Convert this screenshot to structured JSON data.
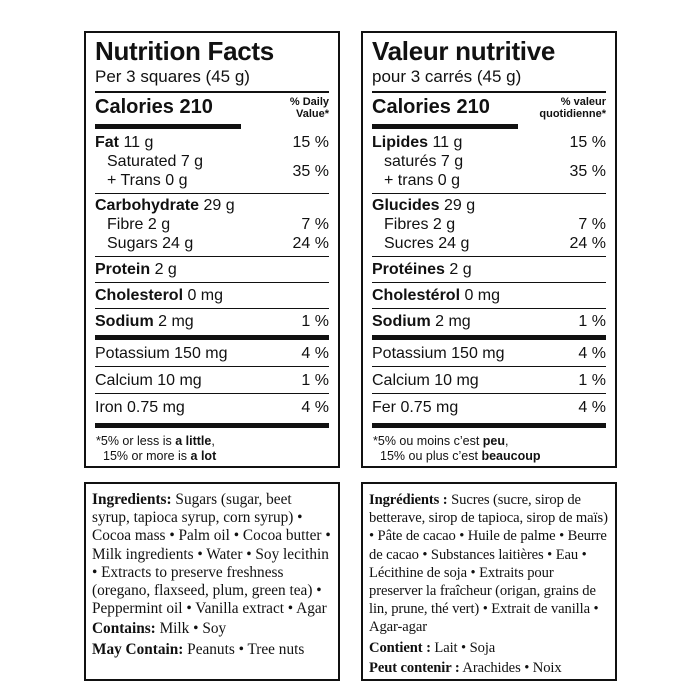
{
  "en": {
    "title": "Nutrition Facts",
    "serving": "Per 3 squares (45 g)",
    "calories": "Calories 210",
    "dv_line1": "% Daily",
    "dv_line2": "Value*",
    "fat_label": "Fat",
    "fat_amount": " 11 g",
    "fat_pct": "15 %",
    "saturated": "Saturated 7 g",
    "trans": "+ Trans 0 g",
    "sat_trans_pct": "35 %",
    "carb_label": "Carbohydrate",
    "carb_amount": " 29 g",
    "fibre": "Fibre 2 g",
    "fibre_pct": "7 %",
    "sugars": "Sugars 24 g",
    "sugars_pct": "24 %",
    "protein_label": "Protein",
    "protein_amount": " 2 g",
    "cholesterol_label": "Cholesterol",
    "cholesterol_amount": " 0 mg",
    "sodium_label": "Sodium",
    "sodium_amount": " 2 mg",
    "sodium_pct": "1 %",
    "potassium": "Potassium 150 mg",
    "potassium_pct": "4 %",
    "calcium": "Calcium 10 mg",
    "calcium_pct": "1 %",
    "iron": "Iron 0.75 mg",
    "iron_pct": "4 %",
    "foot_a": "*5% or less is ",
    "foot_b": "a little",
    "foot_c": ",",
    "foot_d": "15% or more is ",
    "foot_e": "a lot"
  },
  "fr": {
    "title": "Valeur nutritive",
    "serving": "pour 3 carrés (45 g)",
    "calories": "Calories 210",
    "dv_line1": "% valeur",
    "dv_line2": "quotidienne*",
    "fat_label": "Lipides",
    "fat_amount": " 11 g",
    "fat_pct": "15 %",
    "saturated": "saturés 7 g",
    "trans": "+ trans 0 g",
    "sat_trans_pct": "35 %",
    "carb_label": "Glucides",
    "carb_amount": " 29 g",
    "fibre": "Fibres 2 g",
    "fibre_pct": "7 %",
    "sugars": "Sucres 24 g",
    "sugars_pct": "24 %",
    "protein_label": "Protéines",
    "protein_amount": " 2 g",
    "cholesterol_label": "Cholestérol",
    "cholesterol_amount": " 0 mg",
    "sodium_label": "Sodium",
    "sodium_amount": " 2 mg",
    "sodium_pct": "1 %",
    "potassium": "Potassium 150 mg",
    "potassium_pct": "4 %",
    "calcium": "Calcium 10 mg",
    "calcium_pct": "1 %",
    "iron": "Fer 0.75 mg",
    "iron_pct": "4 %",
    "foot_a": "*5% ou moins c’est ",
    "foot_b": "peu",
    "foot_c": ",",
    "foot_d": "15% ou plus c’est ",
    "foot_e": "beaucoup"
  },
  "ingredients_en": {
    "label": "Ingredients:",
    "text": " Sugars (sugar, beet syrup, tapioca syrup, corn syrup) • Cocoa mass • Palm oil • Cocoa butter • Milk ingredients • Water • Soy lecithin • Extracts to preserve freshness (oregano, flaxseed, plum, green tea) • Peppermint oil • Vanilla extract • Agar",
    "contains_label": "Contains:",
    "contains_text": " Milk • Soy",
    "may_label": "May Contain:",
    "may_text": " Peanuts • Tree nuts"
  },
  "ingredients_fr": {
    "label": "Ingrédients :",
    "text": " Sucres (sucre, sirop de betterave, sirop de tapioca, sirop de maïs) • Pâte de cacao • Huile de palme • Beurre de cacao • Substances laitières • Eau • Lécithine de soja • Extraits pour preserver la fraîcheur (origan, grains de lin, prune, thé vert) • Extrait de vanilla • Agar-agar",
    "contains_label": "Contient :",
    "contains_text": " Lait • Soja",
    "may_label": "Peut contenir :",
    "may_text": " Arachides • Noix"
  }
}
